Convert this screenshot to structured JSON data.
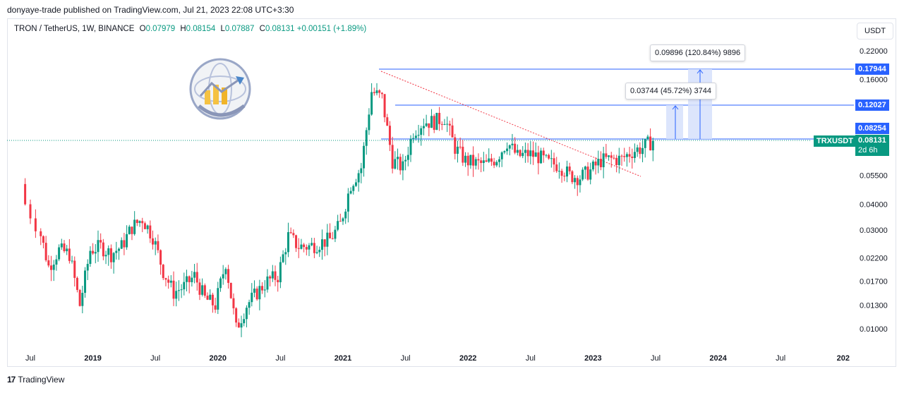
{
  "publisher": "donyaye-trade published on TradingView.com, Jul 21, 2023 22:08 UTC+3:30",
  "symbol": {
    "name": "TRON / TetherUS, 1W, BINANCE",
    "open_label": "O",
    "open": "0.07979",
    "high_label": "H",
    "high": "0.08154",
    "low_label": "L",
    "low": "0.07887",
    "close_label": "C",
    "close": "0.08131",
    "change": "+0.00151 (+1.89%)"
  },
  "unit_button": "USDT",
  "price_tags": {
    "upper_target": "0.17944",
    "mid_target": "0.12027",
    "level": "0.08254",
    "ticker": "TRXUSDT",
    "last_price": "0.08131",
    "countdown": "2d 6h"
  },
  "measures": {
    "large": "0.09896 (120.84%) 9896",
    "small": "0.03744 (45.72%) 3744"
  },
  "footer": {
    "logo": "17",
    "brand": "TradingView"
  },
  "colors": {
    "up": "#089981",
    "down": "#f23645",
    "blue": "#2962ff",
    "trend": "#f23645",
    "measure_fill": "#d6e0fb"
  },
  "chart_data": {
    "type": "candlestick",
    "scale": "log",
    "interval": "1W",
    "y_ticks": [
      "0.22000",
      "0.16000",
      "0.12000",
      "0.08000",
      "0.05500",
      "0.04000",
      "0.03000",
      "0.02200",
      "0.01700",
      "0.01300",
      "0.01000"
    ],
    "x_ticks": [
      "Jul",
      "2019",
      "Jul",
      "2020",
      "Jul",
      "2021",
      "Jul",
      "2022",
      "Jul",
      "2023",
      "Jul",
      "2024",
      "Jul",
      "202"
    ],
    "horizontal_levels": [
      0.17944,
      0.12027,
      0.08254
    ],
    "last_price": 0.08131,
    "price_path": [
      [
        "2018-06",
        0.05
      ],
      [
        "2018-08",
        0.032
      ],
      [
        "2018-09",
        0.02
      ],
      [
        "2018-10",
        0.024
      ],
      [
        "2018-11",
        0.023
      ],
      [
        "2018-12",
        0.013
      ],
      [
        "2019-01",
        0.024
      ],
      [
        "2019-02",
        0.025
      ],
      [
        "2019-03",
        0.023
      ],
      [
        "2019-04",
        0.025
      ],
      [
        "2019-05",
        0.031
      ],
      [
        "2019-06",
        0.034
      ],
      [
        "2019-07",
        0.028
      ],
      [
        "2019-08",
        0.019
      ],
      [
        "2019-09",
        0.015
      ],
      [
        "2019-10",
        0.016
      ],
      [
        "2019-11",
        0.018
      ],
      [
        "2019-12",
        0.014
      ],
      [
        "2020-01",
        0.013
      ],
      [
        "2020-02",
        0.021
      ],
      [
        "2020-03",
        0.01
      ],
      [
        "2020-04",
        0.013
      ],
      [
        "2020-05",
        0.015
      ],
      [
        "2020-06",
        0.017
      ],
      [
        "2020-07",
        0.018
      ],
      [
        "2020-08",
        0.028
      ],
      [
        "2020-09",
        0.025
      ],
      [
        "2020-10",
        0.025
      ],
      [
        "2020-11",
        0.026
      ],
      [
        "2020-12",
        0.027
      ],
      [
        "2021-01",
        0.032
      ],
      [
        "2021-02",
        0.05
      ],
      [
        "2021-03",
        0.06
      ],
      [
        "2021-04",
        0.14
      ],
      [
        "2021-05",
        0.13
      ],
      [
        "2021-06",
        0.065
      ],
      [
        "2021-07",
        0.06
      ],
      [
        "2021-08",
        0.09
      ],
      [
        "2021-09",
        0.1
      ],
      [
        "2021-10",
        0.1
      ],
      [
        "2021-11",
        0.105
      ],
      [
        "2021-12",
        0.075
      ],
      [
        "2022-01",
        0.065
      ],
      [
        "2022-02",
        0.063
      ],
      [
        "2022-03",
        0.062
      ],
      [
        "2022-04",
        0.067
      ],
      [
        "2022-05",
        0.08
      ],
      [
        "2022-06",
        0.068
      ],
      [
        "2022-07",
        0.07
      ],
      [
        "2022-08",
        0.068
      ],
      [
        "2022-09",
        0.063
      ],
      [
        "2022-10",
        0.062
      ],
      [
        "2022-11",
        0.055
      ],
      [
        "2022-12",
        0.054
      ],
      [
        "2023-01",
        0.058
      ],
      [
        "2023-02",
        0.065
      ],
      [
        "2023-03",
        0.066
      ],
      [
        "2023-04",
        0.066
      ],
      [
        "2023-05",
        0.072
      ],
      [
        "2023-06",
        0.075
      ],
      [
        "2023-07",
        0.08131
      ]
    ]
  }
}
